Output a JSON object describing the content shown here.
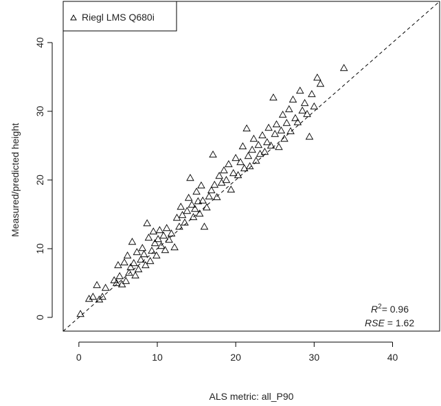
{
  "chart_data": {
    "type": "scatter",
    "title": "",
    "xlabel": "ALS metric: all_P90",
    "ylabel": "Measured/predicted height",
    "xlim": [
      -2,
      46
    ],
    "ylim": [
      -2,
      46
    ],
    "x_ticks": [
      0,
      10,
      20,
      30,
      40
    ],
    "y_ticks": [
      0,
      10,
      20,
      30,
      40
    ],
    "x_tick_labels": [
      "0",
      "10",
      "20",
      "30",
      "40"
    ],
    "y_tick_labels": [
      "0",
      "10",
      "20",
      "30",
      "40"
    ],
    "grid": false,
    "legend": {
      "placement": "top-left",
      "entries": [
        {
          "label": "Riegl LMS Q680i",
          "marker": "triangle-open"
        }
      ]
    },
    "reference_line": {
      "type": "identity",
      "style": "dashed",
      "slope": 1,
      "intercept": 0
    },
    "annotation": {
      "r2_symbol": "R",
      "r2_superscript": "2",
      "r2_value": "= 0.96",
      "rse_symbol": "RSE",
      "rse_value": "= 1.62"
    },
    "series": [
      {
        "name": "Riegl LMS Q680i",
        "marker": "triangle-open",
        "points": [
          [
            0.2,
            0.5
          ],
          [
            1.3,
            2.7
          ],
          [
            1.8,
            3.0
          ],
          [
            2.3,
            4.7
          ],
          [
            2.6,
            2.6
          ],
          [
            3.0,
            3.0
          ],
          [
            3.4,
            4.3
          ],
          [
            4.5,
            5.4
          ],
          [
            4.8,
            5.0
          ],
          [
            5.0,
            7.6
          ],
          [
            5.2,
            6.0
          ],
          [
            5.5,
            4.8
          ],
          [
            5.8,
            8.0
          ],
          [
            6.0,
            5.3
          ],
          [
            6.2,
            9.0
          ],
          [
            6.4,
            6.5
          ],
          [
            6.6,
            7.3
          ],
          [
            6.8,
            11.0
          ],
          [
            7.0,
            7.9
          ],
          [
            7.2,
            6.1
          ],
          [
            7.4,
            9.5
          ],
          [
            7.6,
            7.0
          ],
          [
            7.9,
            8.4
          ],
          [
            8.1,
            10.1
          ],
          [
            8.3,
            9.2
          ],
          [
            8.5,
            7.6
          ],
          [
            8.7,
            13.7
          ],
          [
            8.9,
            11.6
          ],
          [
            9.1,
            8.2
          ],
          [
            9.3,
            9.7
          ],
          [
            9.5,
            12.5
          ],
          [
            9.7,
            10.8
          ],
          [
            9.9,
            9.0
          ],
          [
            10.1,
            11.4
          ],
          [
            10.3,
            12.7
          ],
          [
            10.5,
            10.4
          ],
          [
            10.8,
            11.9
          ],
          [
            11.0,
            9.8
          ],
          [
            11.2,
            13.0
          ],
          [
            11.5,
            11.3
          ],
          [
            11.8,
            12.2
          ],
          [
            12.2,
            10.2
          ],
          [
            12.5,
            14.5
          ],
          [
            12.8,
            13.2
          ],
          [
            13.0,
            16.1
          ],
          [
            13.2,
            14.9
          ],
          [
            13.5,
            13.8
          ],
          [
            13.8,
            15.5
          ],
          [
            14.0,
            17.4
          ],
          [
            14.2,
            20.3
          ],
          [
            14.4,
            16.4
          ],
          [
            14.6,
            14.6
          ],
          [
            14.8,
            15.8
          ],
          [
            15.0,
            18.3
          ],
          [
            15.2,
            16.9
          ],
          [
            15.4,
            15.1
          ],
          [
            15.6,
            19.2
          ],
          [
            15.8,
            17.0
          ],
          [
            16.0,
            13.2
          ],
          [
            16.3,
            16.0
          ],
          [
            16.6,
            17.6
          ],
          [
            16.9,
            18.5
          ],
          [
            17.1,
            23.7
          ],
          [
            17.3,
            19.3
          ],
          [
            17.6,
            17.5
          ],
          [
            17.9,
            20.6
          ],
          [
            18.2,
            19.6
          ],
          [
            18.5,
            21.4
          ],
          [
            18.8,
            20.0
          ],
          [
            19.1,
            22.3
          ],
          [
            19.4,
            18.6
          ],
          [
            19.7,
            21.0
          ],
          [
            20.0,
            23.2
          ],
          [
            20.3,
            20.7
          ],
          [
            20.6,
            22.6
          ],
          [
            20.9,
            24.9
          ],
          [
            21.1,
            21.7
          ],
          [
            21.4,
            27.5
          ],
          [
            21.6,
            23.5
          ],
          [
            21.8,
            22.0
          ],
          [
            22.1,
            24.4
          ],
          [
            22.3,
            26.0
          ],
          [
            22.6,
            22.8
          ],
          [
            22.9,
            25.1
          ],
          [
            23.1,
            23.8
          ],
          [
            23.4,
            26.5
          ],
          [
            23.7,
            24.1
          ],
          [
            24.0,
            25.5
          ],
          [
            24.2,
            27.6
          ],
          [
            24.5,
            25.0
          ],
          [
            24.8,
            32.0
          ],
          [
            25.0,
            26.7
          ],
          [
            25.2,
            28.1
          ],
          [
            25.5,
            24.8
          ],
          [
            25.8,
            27.2
          ],
          [
            26.0,
            29.5
          ],
          [
            26.2,
            26.0
          ],
          [
            26.5,
            28.3
          ],
          [
            26.8,
            30.3
          ],
          [
            27.0,
            27.1
          ],
          [
            27.3,
            31.7
          ],
          [
            27.6,
            29.0
          ],
          [
            27.9,
            28.4
          ],
          [
            28.2,
            33.0
          ],
          [
            28.5,
            30.1
          ],
          [
            28.8,
            31.2
          ],
          [
            29.1,
            29.6
          ],
          [
            29.4,
            26.3
          ],
          [
            29.7,
            32.5
          ],
          [
            30.0,
            30.7
          ],
          [
            30.4,
            34.9
          ],
          [
            30.8,
            34.0
          ],
          [
            33.8,
            36.3
          ]
        ]
      }
    ]
  }
}
